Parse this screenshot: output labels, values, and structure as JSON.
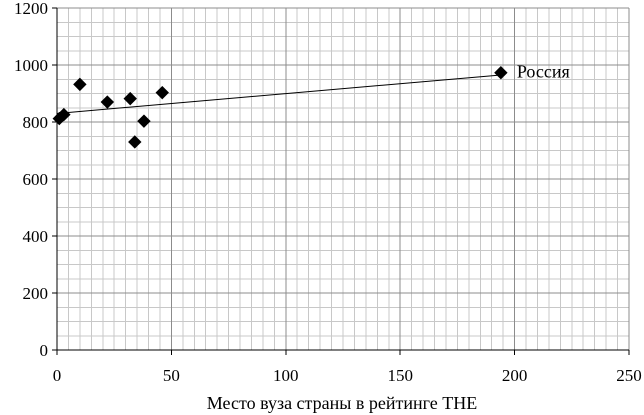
{
  "chart_data": {
    "type": "scatter",
    "title": "",
    "xlabel": "Место вуза страны в рейтинге THE",
    "ylabel": "",
    "xlim": [
      0,
      250
    ],
    "ylim": [
      0,
      1200
    ],
    "x_ticks": [
      0,
      50,
      100,
      150,
      200,
      250
    ],
    "y_ticks": [
      0,
      200,
      400,
      600,
      800,
      1000,
      1200
    ],
    "x_minor_step": 5,
    "y_minor_step": 50,
    "grid": true,
    "legend": "none",
    "marker": "diamond",
    "marker_color": "#000000",
    "points": [
      {
        "x": 1,
        "y": 812
      },
      {
        "x": 3,
        "y": 826
      },
      {
        "x": 10,
        "y": 932
      },
      {
        "x": 22,
        "y": 870
      },
      {
        "x": 32,
        "y": 882
      },
      {
        "x": 34,
        "y": 730
      },
      {
        "x": 38,
        "y": 803
      },
      {
        "x": 46,
        "y": 903
      },
      {
        "x": 194,
        "y": 973
      }
    ],
    "annotations": [
      {
        "text": "Россия",
        "x": 194,
        "y": 973
      }
    ],
    "trendline": {
      "type": "linear",
      "x0": 0,
      "y0": 830,
      "x1": 194,
      "y1": 965,
      "color": "#000000"
    }
  }
}
